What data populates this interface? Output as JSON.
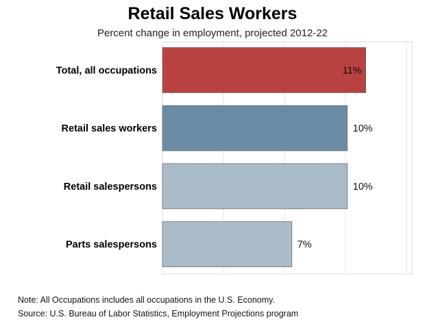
{
  "chart_data": {
    "type": "bar",
    "orientation": "horizontal",
    "title": "Retail Sales Workers",
    "subtitle": "Percent change in employment, projected 2012-22",
    "categories": [
      "Total, all occupations",
      "Retail sales workers",
      "Retail salespersons",
      "Parts salespersons"
    ],
    "values": [
      11,
      10,
      10,
      7
    ],
    "value_labels": [
      "11%",
      "10%",
      "10%",
      "7%"
    ],
    "bar_colors": [
      "#b94240",
      "#6b8ba5",
      "#a9bcc8",
      "#a9bcc8"
    ],
    "xlim": [
      0,
      13.5
    ],
    "grid": true
  },
  "notes": {
    "note": "Note: All Occupations includes all occupations in the U.S. Economy.",
    "source": "Source: U.S. Bureau of Labor Statistics, Employment Projections program"
  }
}
